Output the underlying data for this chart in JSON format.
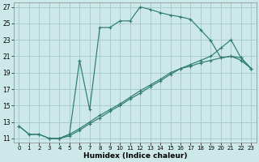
{
  "xlabel": "Humidex (Indice chaleur)",
  "background_color": "#cce8e8",
  "grid_color": "#aacccc",
  "line_color": "#2e7d6e",
  "xlim": [
    -0.5,
    23.5
  ],
  "ylim": [
    10.5,
    27.5
  ],
  "xticks": [
    0,
    1,
    2,
    3,
    4,
    5,
    6,
    7,
    8,
    9,
    10,
    11,
    12,
    13,
    14,
    15,
    16,
    17,
    18,
    19,
    20,
    21,
    22,
    23
  ],
  "yticks": [
    11,
    13,
    15,
    17,
    19,
    21,
    23,
    25,
    27
  ],
  "curve1_x": [
    0,
    1,
    2,
    3,
    4,
    5,
    6,
    7,
    8,
    9,
    10,
    11,
    12,
    13,
    14,
    15,
    16,
    17,
    18,
    19,
    20,
    21,
    22,
    23
  ],
  "curve1_y": [
    12.5,
    11.5,
    11.5,
    11.0,
    11.0,
    11.5,
    20.5,
    14.5,
    24.5,
    24.5,
    25.3,
    25.3,
    27.0,
    26.7,
    26.3,
    26.0,
    25.8,
    25.5,
    24.2,
    22.9,
    20.8,
    21.0,
    20.5,
    19.5
  ],
  "curve2_x": [
    0,
    1,
    2,
    3,
    4,
    5,
    6,
    7,
    8,
    9,
    10,
    11,
    12,
    13,
    14,
    15,
    16,
    17,
    18,
    19,
    20,
    21,
    22,
    23
  ],
  "curve2_y": [
    12.5,
    11.5,
    11.5,
    11.0,
    11.0,
    11.5,
    12.2,
    13.0,
    13.8,
    14.5,
    15.2,
    16.0,
    16.8,
    17.5,
    18.2,
    19.0,
    19.5,
    20.0,
    20.5,
    21.0,
    22.0,
    23.0,
    20.8,
    19.5
  ],
  "curve3_x": [
    3,
    4,
    5,
    6,
    7,
    8,
    9,
    10,
    11,
    12,
    13,
    14,
    15,
    16,
    17,
    18,
    19,
    20,
    21,
    22,
    23
  ],
  "curve3_y": [
    11.0,
    11.0,
    11.3,
    12.0,
    12.8,
    13.5,
    14.3,
    15.0,
    15.8,
    16.5,
    17.3,
    18.0,
    18.8,
    19.5,
    19.8,
    20.2,
    20.5,
    20.8,
    21.0,
    20.8,
    19.5
  ]
}
